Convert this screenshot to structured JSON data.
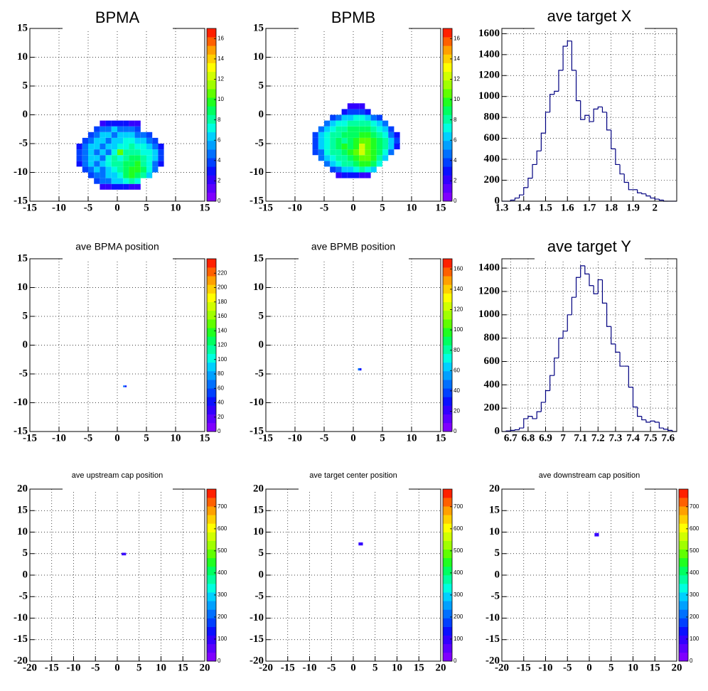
{
  "palette": [
    "#7f00ff",
    "#5a00ff",
    "#3300ff",
    "#0a10ff",
    "#0040ff",
    "#0070ff",
    "#00a0ff",
    "#00d0ff",
    "#00ffe0",
    "#00ffa0",
    "#00ff60",
    "#20ff20",
    "#60ff00",
    "#a0ff00",
    "#d0ff00",
    "#ffff00",
    "#ffd000",
    "#ffa000",
    "#ff6000",
    "#ff2000"
  ],
  "chart_data": [
    {
      "type": "heatmap",
      "title": "BPMA",
      "grid": true,
      "xlim": [
        -15,
        15
      ],
      "ylim": [
        -15,
        15
      ],
      "xticks": [
        -15,
        -10,
        -5,
        0,
        5,
        10,
        15
      ],
      "yticks": [
        -15,
        -10,
        -5,
        0,
        5,
        10,
        15
      ],
      "zlim": [
        0,
        17
      ],
      "zticks": [
        0,
        2,
        4,
        6,
        8,
        10,
        12,
        14,
        16
      ],
      "xbins": [
        -7,
        -6,
        -5,
        -4,
        -3,
        -2,
        -1,
        0,
        1,
        2,
        3,
        4,
        5,
        6,
        7,
        8
      ],
      "ybins": [
        -13,
        -12,
        -11,
        -10,
        -9,
        -8,
        -7,
        -6,
        -5,
        -4,
        -3,
        -2,
        -1
      ],
      "z": [
        [
          null,
          null,
          null,
          null,
          2,
          2,
          3,
          3,
          3,
          2,
          2,
          null,
          null,
          null,
          null
        ],
        [
          null,
          null,
          null,
          4,
          5,
          5,
          6,
          6,
          7,
          8,
          7,
          null,
          null,
          null,
          null
        ],
        [
          null,
          null,
          4,
          5,
          5,
          6,
          6,
          7,
          9,
          10,
          9,
          8,
          6,
          null,
          null
        ],
        [
          null,
          4,
          5,
          6,
          5,
          6,
          7,
          8,
          9,
          10,
          10,
          9,
          7,
          5,
          null
        ],
        [
          3,
          5,
          6,
          5,
          6,
          7,
          8,
          8,
          9,
          9,
          10,
          8,
          7,
          5,
          3
        ],
        [
          4,
          5,
          6,
          6,
          5,
          7,
          8,
          7,
          8,
          9,
          9,
          8,
          7,
          6,
          4
        ],
        [
          4,
          5,
          6,
          5,
          6,
          5,
          7,
          11,
          8,
          8,
          8,
          7,
          7,
          6,
          4
        ],
        [
          3,
          5,
          6,
          6,
          5,
          6,
          6,
          7,
          7,
          8,
          7,
          7,
          6,
          5,
          3
        ],
        [
          null,
          4,
          5,
          6,
          6,
          5,
          6,
          6,
          7,
          7,
          6,
          6,
          5,
          4,
          null
        ],
        [
          null,
          null,
          4,
          5,
          6,
          6,
          5,
          6,
          6,
          6,
          5,
          5,
          4,
          null,
          null
        ],
        [
          null,
          null,
          null,
          4,
          5,
          5,
          6,
          5,
          5,
          5,
          4,
          null,
          null,
          null,
          null
        ],
        [
          null,
          null,
          null,
          null,
          2,
          3,
          3,
          3,
          3,
          2,
          2,
          null,
          null,
          null,
          null
        ]
      ]
    },
    {
      "type": "heatmap",
      "title": "BPMB",
      "grid": true,
      "xlim": [
        -15,
        15
      ],
      "ylim": [
        -15,
        15
      ],
      "xticks": [
        -15,
        -10,
        -5,
        0,
        5,
        10,
        15
      ],
      "yticks": [
        -15,
        -10,
        -5,
        0,
        5,
        10,
        15
      ],
      "zlim": [
        0,
        17
      ],
      "zticks": [
        0,
        2,
        4,
        6,
        8,
        10,
        12,
        14,
        16
      ],
      "xbins": [
        -7,
        -6,
        -5,
        -4,
        -3,
        -2,
        -1,
        0,
        1,
        2,
        3,
        4,
        5,
        6,
        7,
        8
      ],
      "ybins": [
        -11,
        -10,
        -9,
        -8,
        -7,
        -6,
        -5,
        -4,
        -3,
        -2,
        -1,
        0,
        1,
        2
      ],
      "z": [
        [
          null,
          null,
          null,
          null,
          2,
          3,
          3,
          3,
          2,
          2,
          null,
          null,
          null,
          null,
          null
        ],
        [
          null,
          null,
          null,
          4,
          5,
          6,
          6,
          7,
          8,
          7,
          6,
          null,
          null,
          null,
          null
        ],
        [
          null,
          null,
          5,
          6,
          7,
          8,
          8,
          9,
          10,
          10,
          9,
          7,
          null,
          null,
          null
        ],
        [
          null,
          5,
          6,
          7,
          8,
          8,
          9,
          10,
          11,
          11,
          10,
          8,
          6,
          null,
          null
        ],
        [
          4,
          5,
          7,
          8,
          8,
          9,
          10,
          11,
          12,
          11,
          10,
          9,
          7,
          5,
          null
        ],
        [
          4,
          6,
          7,
          8,
          9,
          10,
          9,
          10,
          12,
          11,
          10,
          9,
          8,
          6,
          3
        ],
        [
          4,
          6,
          7,
          8,
          9,
          8,
          9,
          10,
          11,
          11,
          10,
          9,
          8,
          6,
          4
        ],
        [
          4,
          6,
          7,
          8,
          8,
          9,
          9,
          9,
          10,
          10,
          9,
          8,
          7,
          5,
          3
        ],
        [
          null,
          5,
          6,
          7,
          8,
          8,
          9,
          9,
          9,
          9,
          8,
          7,
          6,
          4,
          null
        ],
        [
          null,
          null,
          5,
          6,
          7,
          7,
          8,
          8,
          8,
          8,
          7,
          6,
          5,
          null,
          null
        ],
        [
          null,
          null,
          null,
          4,
          5,
          6,
          6,
          7,
          7,
          6,
          5,
          4,
          null,
          null,
          null
        ],
        [
          null,
          null,
          null,
          null,
          null,
          3,
          4,
          4,
          4,
          3,
          null,
          null,
          null,
          null,
          null
        ],
        [
          null,
          null,
          null,
          null,
          null,
          null,
          2,
          2,
          2,
          null,
          null,
          null,
          null,
          null,
          null
        ]
      ]
    },
    {
      "type": "histogram",
      "title": "ave target X",
      "grid": true,
      "color": "#000080",
      "xlim": [
        1.3,
        2.1
      ],
      "ylim": [
        0,
        1650
      ],
      "xticks": [
        1.3,
        1.4,
        1.5,
        1.6,
        1.7,
        1.8,
        1.9,
        2
      ],
      "yticks": [
        0,
        200,
        400,
        600,
        800,
        1000,
        1200,
        1400,
        1600
      ],
      "bins": [
        1.3,
        1.32,
        1.34,
        1.36,
        1.38,
        1.4,
        1.42,
        1.44,
        1.46,
        1.48,
        1.5,
        1.52,
        1.54,
        1.56,
        1.58,
        1.6,
        1.62,
        1.64,
        1.66,
        1.68,
        1.7,
        1.72,
        1.74,
        1.76,
        1.78,
        1.8,
        1.82,
        1.84,
        1.86,
        1.88,
        1.9,
        1.92,
        1.94,
        1.96,
        1.98,
        2,
        2.02,
        2.04,
        2.06,
        2.08,
        2.1
      ],
      "values": [
        0,
        0,
        10,
        30,
        60,
        130,
        220,
        350,
        480,
        650,
        850,
        1020,
        1050,
        1250,
        1480,
        1530,
        1250,
        960,
        780,
        820,
        760,
        880,
        900,
        850,
        680,
        500,
        350,
        260,
        180,
        110,
        110,
        80,
        70,
        50,
        30,
        20,
        10,
        0,
        0,
        0
      ]
    },
    {
      "type": "heatmap",
      "title": "ave BPMA position",
      "grid": true,
      "xlim": [
        -15,
        15
      ],
      "ylim": [
        -15,
        15
      ],
      "xticks": [
        -15,
        -10,
        -5,
        0,
        5,
        10,
        15
      ],
      "yticks": [
        -15,
        -10,
        -5,
        0,
        5,
        10,
        15
      ],
      "zlim": [
        0,
        240
      ],
      "zticks": [
        0,
        20,
        40,
        60,
        80,
        100,
        120,
        140,
        160,
        180,
        200,
        220
      ],
      "xbins": [
        1.0,
        1.3,
        1.6
      ],
      "ybins": [
        -7.3,
        -7.0
      ],
      "z": [
        [
          60,
          40
        ]
      ]
    },
    {
      "type": "heatmap",
      "title": "ave BPMB position",
      "grid": true,
      "xlim": [
        -15,
        15
      ],
      "ylim": [
        -15,
        15
      ],
      "xticks": [
        -15,
        -10,
        -5,
        0,
        5,
        10,
        15
      ],
      "yticks": [
        -15,
        -10,
        -5,
        0,
        5,
        10,
        15
      ],
      "zlim": [
        0,
        170
      ],
      "zticks": [
        0,
        20,
        40,
        60,
        80,
        100,
        120,
        140,
        160
      ],
      "xbins": [
        0.8,
        1.1,
        1.4
      ],
      "ybins": [
        -4.4,
        -4.0
      ],
      "z": [
        [
          50,
          30
        ]
      ]
    },
    {
      "type": "histogram",
      "title": "ave target Y",
      "grid": true,
      "color": "#000080",
      "xlim": [
        6.65,
        7.65
      ],
      "ylim": [
        0,
        1480
      ],
      "xticks": [
        6.7,
        6.8,
        6.9,
        7,
        7.1,
        7.2,
        7.3,
        7.4,
        7.5,
        7.6
      ],
      "yticks": [
        0,
        200,
        400,
        600,
        800,
        1000,
        1200,
        1400
      ],
      "bins": [
        6.65,
        6.675,
        6.7,
        6.725,
        6.75,
        6.775,
        6.8,
        6.825,
        6.85,
        6.875,
        6.9,
        6.925,
        6.95,
        6.975,
        7,
        7.025,
        7.05,
        7.075,
        7.1,
        7.125,
        7.15,
        7.175,
        7.2,
        7.225,
        7.25,
        7.275,
        7.3,
        7.325,
        7.35,
        7.375,
        7.4,
        7.425,
        7.45,
        7.475,
        7.5,
        7.525,
        7.55,
        7.575,
        7.6,
        7.625,
        7.65
      ],
      "values": [
        0,
        5,
        10,
        15,
        30,
        110,
        130,
        110,
        170,
        250,
        350,
        480,
        630,
        800,
        860,
        1000,
        1150,
        1320,
        1420,
        1350,
        1250,
        1180,
        1300,
        1100,
        900,
        750,
        680,
        560,
        560,
        380,
        210,
        130,
        100,
        80,
        90,
        80,
        30,
        20,
        10,
        0
      ]
    },
    {
      "type": "heatmap",
      "title": "ave upstream cap position",
      "grid": true,
      "xlim": [
        -20,
        20
      ],
      "ylim": [
        -20,
        20
      ],
      "xticks": [
        -20,
        -15,
        -10,
        -5,
        0,
        5,
        10,
        15,
        20
      ],
      "yticks": [
        -20,
        -15,
        -10,
        -5,
        0,
        5,
        10,
        15,
        20
      ],
      "zlim": [
        0,
        780
      ],
      "zticks": [
        0,
        100,
        200,
        300,
        400,
        500,
        600,
        700
      ],
      "xbins": [
        1.0,
        1.5,
        2.0
      ],
      "ybins": [
        4.6,
        5.2
      ],
      "z": [
        [
          100,
          80
        ]
      ]
    },
    {
      "type": "heatmap",
      "title": "ave target center  position",
      "grid": true,
      "xlim": [
        -20,
        20
      ],
      "ylim": [
        -20,
        20
      ],
      "xticks": [
        -20,
        -15,
        -10,
        -5,
        0,
        5,
        10,
        15,
        20
      ],
      "yticks": [
        -20,
        -15,
        -10,
        -5,
        0,
        5,
        10,
        15,
        20
      ],
      "zlim": [
        0,
        780
      ],
      "zticks": [
        0,
        100,
        200,
        300,
        400,
        500,
        600,
        700
      ],
      "xbins": [
        1.2,
        1.7,
        2.2
      ],
      "ybins": [
        6.9,
        7.6
      ],
      "z": [
        [
          100,
          80
        ]
      ]
    },
    {
      "type": "heatmap",
      "title": "ave downstream cap position",
      "grid": true,
      "xlim": [
        -20,
        20
      ],
      "ylim": [
        -20,
        20
      ],
      "xticks": [
        -20,
        -15,
        -10,
        -5,
        0,
        5,
        10,
        15,
        20
      ],
      "yticks": [
        -20,
        -15,
        -10,
        -5,
        0,
        5,
        10,
        15,
        20
      ],
      "zlim": [
        0,
        780
      ],
      "zticks": [
        0,
        100,
        200,
        300,
        400,
        500,
        600,
        700
      ],
      "xbins": [
        1.2,
        1.7,
        2.2
      ],
      "ybins": [
        9.0,
        9.8
      ],
      "z": [
        [
          100,
          80
        ]
      ]
    }
  ]
}
